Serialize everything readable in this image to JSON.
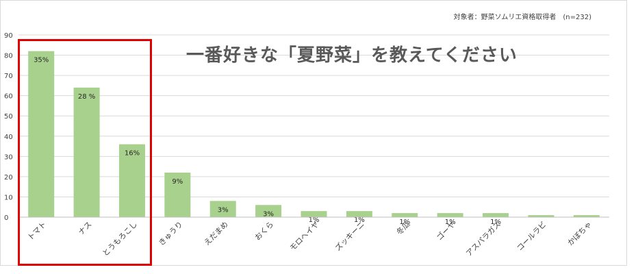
{
  "note": "対象者：野菜ソムリエ資格取得者　(n=232)",
  "chart_data": {
    "type": "bar",
    "title": "一番好きな「夏野菜」を教えてください",
    "categories": [
      "トマト",
      "ナス",
      "とうもろこし",
      "きゅうり",
      "えだまめ",
      "おくら",
      "モロヘイヤ",
      "ズッキーニ",
      "冬瓜",
      "ゴーヤ",
      "アスパラガス",
      "コールラビ",
      "かぼちゃ"
    ],
    "values": [
      82,
      64,
      36,
      22,
      8,
      6,
      3,
      3,
      2,
      2,
      2,
      1,
      1
    ],
    "data_labels": [
      "35%",
      "28 %",
      "16%",
      "9%",
      "3%",
      "3%",
      "1%",
      "1%",
      "1%",
      "1%",
      "1%",
      "",
      ""
    ],
    "y_ticks": [
      "0",
      "10",
      "20",
      "30",
      "40",
      "50",
      "60",
      "70",
      "80",
      "90"
    ],
    "ylim": [
      0,
      90
    ],
    "grid": true,
    "bar_color": "#a9d18e",
    "highlight_color": "#e00000"
  }
}
